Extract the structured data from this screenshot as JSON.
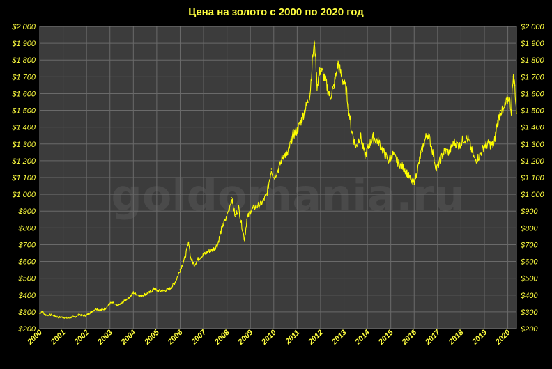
{
  "chart_data": {
    "type": "line",
    "title": "Цена на золото с 2000 по 2020 год",
    "watermark": "goldomania.ru",
    "xlabel": "",
    "ylabel": "",
    "xlim": [
      2000,
      2020.37
    ],
    "ylim": [
      200,
      2000
    ],
    "y_ticks": [
      200,
      300,
      400,
      500,
      600,
      700,
      800,
      900,
      1000,
      1100,
      1200,
      1300,
      1400,
      1500,
      1600,
      1700,
      1800,
      1900,
      2000
    ],
    "y_tick_labels": [
      "$200",
      "$300",
      "$400",
      "$500",
      "$600",
      "$700",
      "$800",
      "$900",
      "$1 000",
      "$1 100",
      "$1 200",
      "$1 300",
      "$1 400",
      "$1 500",
      "$1 600",
      "$1 700",
      "$1 800",
      "$1 900",
      "$2 000"
    ],
    "x_tick_labels": [
      "2000",
      "2001",
      "2002",
      "2003",
      "2004",
      "2005",
      "2006",
      "2007",
      "2008",
      "2009",
      "2010",
      "2011",
      "2012",
      "2013",
      "2014",
      "2015",
      "2016",
      "2017",
      "2018",
      "2019",
      "2020"
    ],
    "y_axis_both_sides": true,
    "grid": "horizontal and vertical",
    "colors": {
      "background": "#000000",
      "plot": "#3c3c3c",
      "grid": "#6a6a6a",
      "line": "#ffff00",
      "text": "#ffff40"
    },
    "series": [
      {
        "x": [
          2000.0,
          2000.1,
          2000.2,
          2000.35,
          2000.5,
          2000.65,
          2000.8,
          2001.0,
          2001.2,
          2001.35,
          2001.5,
          2001.7,
          2001.8,
          2002.0,
          2002.2,
          2002.4,
          2002.6,
          2002.8,
          2003.0,
          2003.1,
          2003.3,
          2003.5,
          2003.7,
          2003.9,
          2004.0,
          2004.3,
          2004.5,
          2004.7,
          2004.9,
          2005.0,
          2005.3,
          2005.6,
          2005.8,
          2006.0,
          2006.2,
          2006.37,
          2006.45,
          2006.6,
          2006.8,
          2007.0,
          2007.2,
          2007.4,
          2007.6,
          2007.8,
          2007.95,
          2008.1,
          2008.2,
          2008.35,
          2008.5,
          2008.6,
          2008.75,
          2008.85,
          2009.0,
          2009.15,
          2009.3,
          2009.5,
          2009.7,
          2009.9,
          2010.0,
          2010.2,
          2010.4,
          2010.6,
          2010.8,
          2011.0,
          2011.2,
          2011.4,
          2011.55,
          2011.67,
          2011.75,
          2011.85,
          2012.0,
          2012.2,
          2012.4,
          2012.55,
          2012.75,
          2012.9,
          2013.1,
          2013.3,
          2013.5,
          2013.7,
          2013.9,
          2014.1,
          2014.25,
          2014.5,
          2014.7,
          2014.9,
          2015.1,
          2015.3,
          2015.6,
          2015.95,
          2016.1,
          2016.3,
          2016.5,
          2016.6,
          2016.8,
          2016.95,
          2017.1,
          2017.3,
          2017.5,
          2017.7,
          2017.95,
          2018.1,
          2018.3,
          2018.6,
          2018.8,
          2019.0,
          2019.2,
          2019.4,
          2019.55,
          2019.7,
          2019.8,
          2019.95,
          2020.05,
          2020.15,
          2020.22,
          2020.3,
          2020.37
        ],
        "values": [
          290,
          305,
          285,
          280,
          282,
          275,
          268,
          268,
          262,
          268,
          270,
          285,
          278,
          280,
          300,
          320,
          310,
          320,
          350,
          355,
          335,
          350,
          375,
          395,
          415,
          395,
          405,
          415,
          440,
          425,
          425,
          440,
          480,
          550,
          620,
          715,
          620,
          580,
          620,
          640,
          660,
          670,
          700,
          810,
          850,
          920,
          980,
          870,
          920,
          840,
          730,
          850,
          900,
          920,
          930,
          950,
          1000,
          1150,
          1100,
          1150,
          1230,
          1240,
          1350,
          1380,
          1450,
          1530,
          1600,
          1830,
          1900,
          1650,
          1750,
          1680,
          1580,
          1630,
          1780,
          1700,
          1620,
          1400,
          1280,
          1350,
          1230,
          1300,
          1340,
          1310,
          1250,
          1200,
          1240,
          1190,
          1150,
          1060,
          1120,
          1250,
          1340,
          1360,
          1250,
          1150,
          1200,
          1260,
          1250,
          1310,
          1290,
          1330,
          1330,
          1200,
          1230,
          1290,
          1300,
          1290,
          1420,
          1500,
          1490,
          1550,
          1580,
          1500,
          1700,
          1650,
          1480
        ]
      }
    ]
  }
}
